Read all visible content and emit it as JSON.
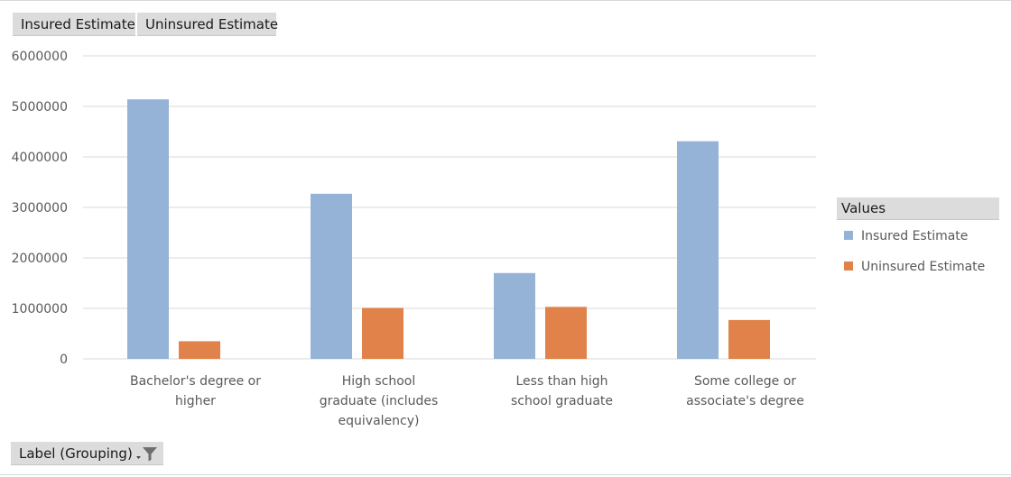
{
  "field_buttons": {
    "values": [
      "Insured Estimate",
      "Uninsured Estimate"
    ],
    "axis_field": "Label (Grouping)"
  },
  "legend": {
    "title": "Values",
    "items": [
      {
        "name": "Insured Estimate",
        "color": "#95b3d7"
      },
      {
        "name": "Uninsured Estimate",
        "color": "#e0824a"
      }
    ]
  },
  "chart_data": {
    "type": "bar",
    "categories": [
      [
        "Bachelor's degree or",
        "higher"
      ],
      [
        "High school",
        "graduate (includes",
        "equivalency)"
      ],
      [
        "Less than high",
        "school graduate"
      ],
      [
        "Some college or",
        "associate's degree"
      ]
    ],
    "series": [
      {
        "name": "Insured Estimate",
        "color": "#95b3d7",
        "values": [
          5140000,
          3270000,
          1700000,
          4310000
        ]
      },
      {
        "name": "Uninsured Estimate",
        "color": "#e0824a",
        "values": [
          350000,
          1010000,
          1030000,
          770000
        ]
      }
    ],
    "ylim": [
      0,
      6000000
    ],
    "yticks": [
      "0",
      "1000000",
      "2000000",
      "3000000",
      "4000000",
      "5000000",
      "6000000"
    ],
    "grid": true,
    "legend_position": "right"
  },
  "icons": {
    "filter": "filter-funnel-icon",
    "dropdown": "dropdown-arrow-icon"
  }
}
